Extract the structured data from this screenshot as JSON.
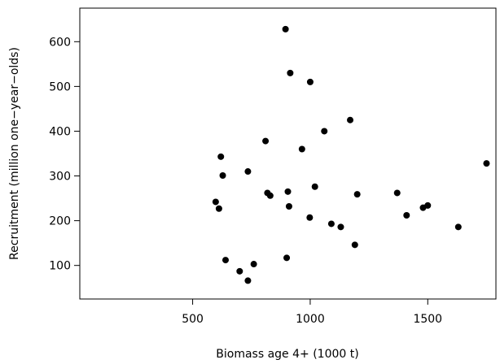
{
  "chart_data": {
    "type": "scatter",
    "title": "",
    "xlabel": "Biomass age 4+ (1000 t)",
    "ylabel": "Recruitment (million one−year−olds)",
    "xlim": [
      20,
      1790
    ],
    "ylim": [
      25,
      675
    ],
    "xticks": [
      500,
      1000,
      1500
    ],
    "yticks": [
      100,
      200,
      300,
      400,
      500,
      600
    ],
    "grid": false,
    "legend": "none",
    "points": [
      {
        "x": 895,
        "y": 628
      },
      {
        "x": 915,
        "y": 530
      },
      {
        "x": 1000,
        "y": 510
      },
      {
        "x": 1170,
        "y": 425
      },
      {
        "x": 1060,
        "y": 400
      },
      {
        "x": 810,
        "y": 378
      },
      {
        "x": 965,
        "y": 360
      },
      {
        "x": 620,
        "y": 343
      },
      {
        "x": 1750,
        "y": 328
      },
      {
        "x": 735,
        "y": 310
      },
      {
        "x": 628,
        "y": 301
      },
      {
        "x": 1020,
        "y": 276
      },
      {
        "x": 905,
        "y": 265
      },
      {
        "x": 1370,
        "y": 262
      },
      {
        "x": 818,
        "y": 262
      },
      {
        "x": 1200,
        "y": 259
      },
      {
        "x": 830,
        "y": 256
      },
      {
        "x": 598,
        "y": 242
      },
      {
        "x": 1500,
        "y": 234
      },
      {
        "x": 910,
        "y": 232
      },
      {
        "x": 1480,
        "y": 229
      },
      {
        "x": 612,
        "y": 227
      },
      {
        "x": 1410,
        "y": 212
      },
      {
        "x": 998,
        "y": 207
      },
      {
        "x": 1090,
        "y": 193
      },
      {
        "x": 1630,
        "y": 186
      },
      {
        "x": 1130,
        "y": 186
      },
      {
        "x": 1190,
        "y": 146
      },
      {
        "x": 900,
        "y": 117
      },
      {
        "x": 640,
        "y": 112
      },
      {
        "x": 760,
        "y": 103
      },
      {
        "x": 700,
        "y": 87
      },
      {
        "x": 735,
        "y": 66
      }
    ]
  }
}
